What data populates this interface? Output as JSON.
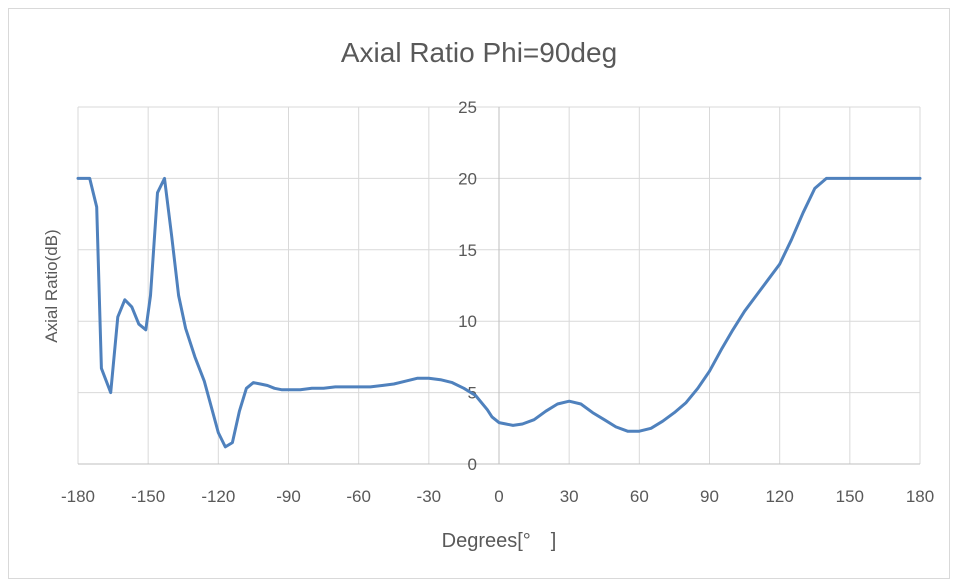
{
  "chart_data": {
    "type": "line",
    "title": "Axial Ratio Phi=90deg",
    "xlabel": "Degrees[°　]",
    "ylabel": "Axial Ratio(dB)",
    "xlim": [
      -180,
      180
    ],
    "ylim": [
      0,
      25
    ],
    "xticks": [
      -180,
      -150,
      -120,
      -90,
      -60,
      -30,
      0,
      30,
      60,
      90,
      120,
      150,
      180
    ],
    "yticks": [
      0,
      5,
      10,
      15,
      20,
      25
    ],
    "grid": true,
    "legend": "none",
    "line_color": "#4f81bd",
    "series": [
      {
        "x": [
          -180,
          -175,
          -172,
          -170,
          -166,
          -163,
          -160,
          -157,
          -154,
          -151,
          -149,
          -146,
          -143,
          -140,
          -137,
          -134,
          -130,
          -126,
          -123,
          -120,
          -117,
          -114,
          -111,
          -108,
          -105,
          -102,
          -99,
          -96,
          -93,
          -90,
          -85,
          -80,
          -75,
          -70,
          -65,
          -60,
          -55,
          -50,
          -45,
          -40,
          -35,
          -30,
          -25,
          -20,
          -15,
          -10,
          -5,
          -3,
          0,
          3,
          6,
          10,
          15,
          20,
          25,
          30,
          35,
          40,
          45,
          50,
          55,
          60,
          65,
          70,
          75,
          80,
          85,
          90,
          95,
          100,
          105,
          110,
          115,
          120,
          125,
          130,
          135,
          140,
          143,
          150,
          160,
          170,
          180
        ],
        "y": [
          20,
          20,
          18,
          6.7,
          5,
          10.3,
          11.5,
          11,
          9.8,
          9.4,
          11.8,
          19,
          20,
          16,
          11.8,
          9.5,
          7.5,
          5.8,
          4,
          2.2,
          1.2,
          1.5,
          3.7,
          5.3,
          5.7,
          5.6,
          5.5,
          5.3,
          5.2,
          5.2,
          5.2,
          5.3,
          5.3,
          5.4,
          5.4,
          5.4,
          5.4,
          5.5,
          5.6,
          5.8,
          6,
          6,
          5.9,
          5.7,
          5.3,
          4.8,
          3.8,
          3.3,
          2.9,
          2.8,
          2.7,
          2.8,
          3.1,
          3.7,
          4.2,
          4.4,
          4.2,
          3.6,
          3.1,
          2.6,
          2.3,
          2.3,
          2.5,
          3,
          3.6,
          4.3,
          5.3,
          6.5,
          8,
          9.4,
          10.7,
          11.8,
          12.9,
          14,
          15.7,
          17.6,
          19.3,
          20,
          20,
          20,
          20,
          20,
          20
        ]
      }
    ]
  }
}
